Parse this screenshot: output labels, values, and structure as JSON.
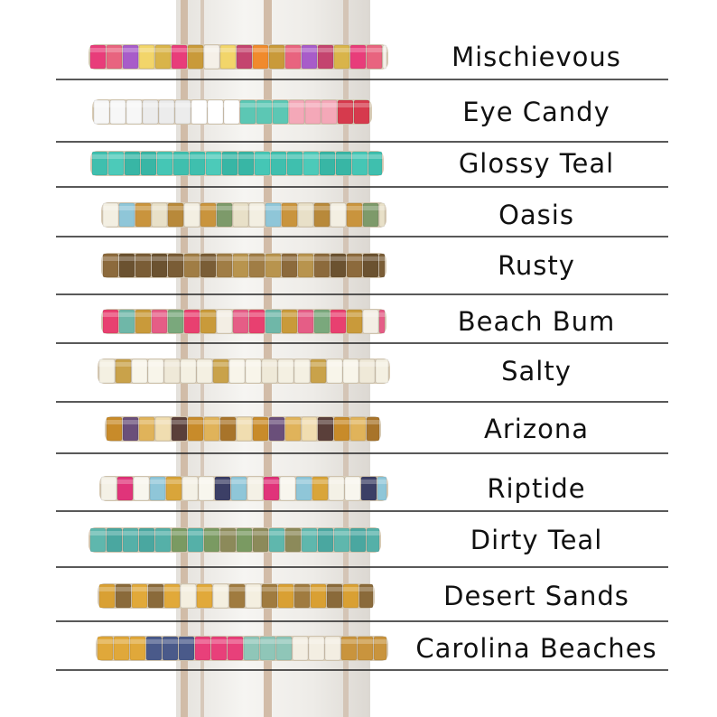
{
  "labels": [
    "Mischievous",
    "Eye Candy",
    "Glossy Teal",
    "Oasis",
    "Rusty",
    "Beach Bum",
    "Salty",
    "Arizona",
    "Riptide",
    "Dirty Teal",
    "Desert Sands",
    "Carolina Beaches"
  ]
}
